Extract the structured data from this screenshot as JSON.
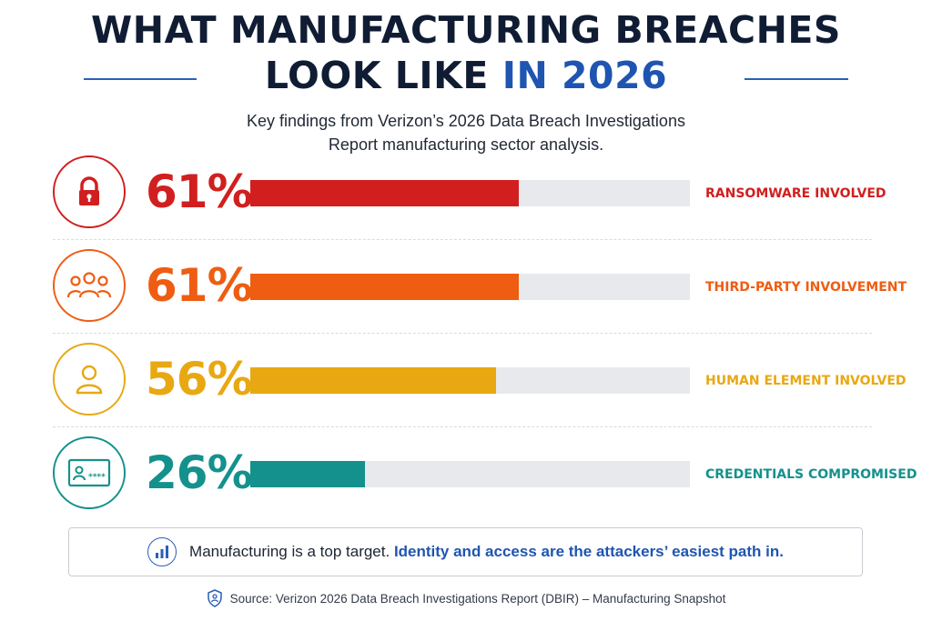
{
  "header": {
    "title_line1": "WHAT MANUFACTURING BREACHES",
    "title_line2_a": "LOOK LIKE",
    "title_line2_b": "IN 2026",
    "subtitle_line1": "Key findings from Verizon’s 2026 Data Breach Investigations",
    "subtitle_line2": "Report manufacturing sector analysis."
  },
  "chart_data": {
    "type": "bar",
    "orientation": "horizontal",
    "categories": [
      "RANSOMWARE INVOLVED",
      "THIRD-PARTY INVOLVEMENT",
      "HUMAN ELEMENT INVOLVED",
      "CREDENTIALS COMPROMISED"
    ],
    "values": [
      61,
      61,
      56,
      26
    ],
    "value_labels": [
      "61%",
      "61%",
      "56%",
      "26%"
    ],
    "xlim": [
      0,
      100
    ],
    "colors": [
      "#d11f1f",
      "#ee5d12",
      "#e8a812",
      "#14918d"
    ],
    "icons": [
      "lock-icon",
      "group-icon",
      "person-icon",
      "id-card-icon"
    ],
    "grid": false,
    "legend": "none"
  },
  "callout": {
    "text_plain": "Manufacturing is a top target. ",
    "text_emphasis": "Identity and access are the attackers’ easiest path in.",
    "icon": "bar-chart-icon",
    "accent_color": "#1f55b0"
  },
  "footer": {
    "source": "Source: Verizon 2026 Data Breach Investigations Report (DBIR) – Manufacturing Snapshot",
    "icon": "shield-icon"
  }
}
